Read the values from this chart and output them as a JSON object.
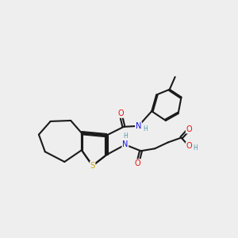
{
  "bg": "#eeeeee",
  "C": "#1a1a1a",
  "N": "#1010ee",
  "O": "#ee1010",
  "S": "#ccaa00",
  "H": "#5599aa",
  "bond_lw": 1.5,
  "bond_color": "#1a1a1a"
}
